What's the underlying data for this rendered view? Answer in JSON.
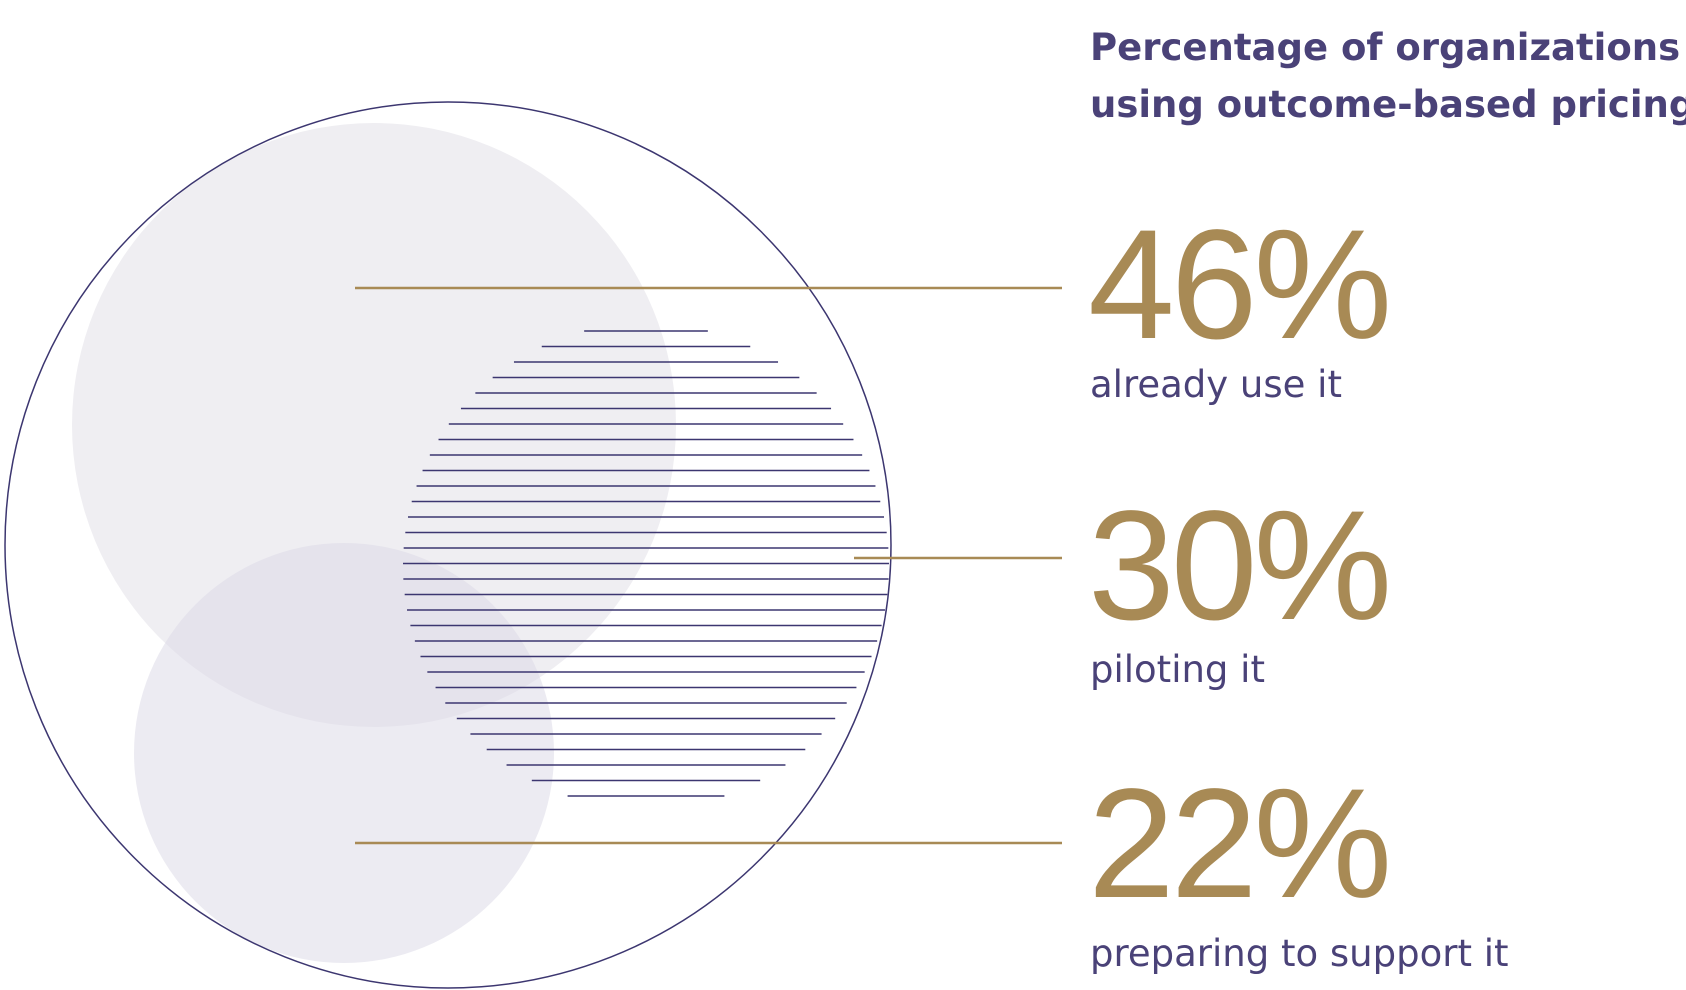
{
  "title": {
    "line1": "Percentage of organizations",
    "line2": "using outcome-based pricing:"
  },
  "stats": [
    {
      "value": "46%",
      "label": "already use it"
    },
    {
      "value": "30%",
      "label": "piloting it"
    },
    {
      "value": "22%",
      "label": "preparing to support it"
    }
  ]
}
